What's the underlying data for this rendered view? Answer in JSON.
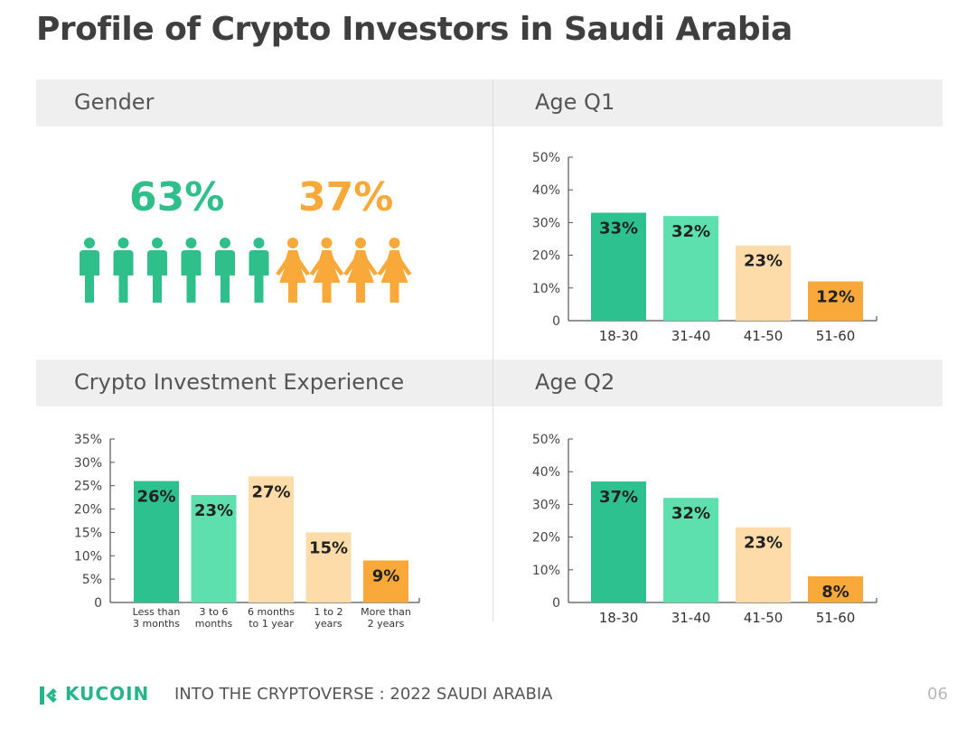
{
  "title": "Profile of Crypto Investors in Saudi Arabia",
  "sections": {
    "gender": "Gender",
    "age_q1": "Age Q1",
    "experience": "Crypto Investment Experience",
    "age_q2": "Age Q2"
  },
  "gender": {
    "male_pct": "63%",
    "female_pct": "37%",
    "male_icons": 6,
    "female_icons": 4,
    "male_color": "#2fbf8a",
    "female_color": "#f8a93a"
  },
  "chart_data": [
    {
      "id": "age_q1",
      "type": "bar",
      "title": "Age Q1",
      "categories": [
        "18-30",
        "31-40",
        "41-50",
        "51-60"
      ],
      "values": [
        33,
        32,
        23,
        12
      ],
      "labels": [
        "33%",
        "32%",
        "23%",
        "12%"
      ],
      "colors": [
        "#2cc18e",
        "#5ddfae",
        "#fddcaa",
        "#f9a83a"
      ],
      "ylim": [
        0,
        50
      ],
      "yticks": [
        "0",
        "10%",
        "20%",
        "30%",
        "40%",
        "50%"
      ],
      "ytick_values": [
        0,
        10,
        20,
        30,
        40,
        50
      ]
    },
    {
      "id": "experience",
      "type": "bar",
      "title": "Crypto Investment Experience",
      "categories": [
        [
          "Less than",
          "3 months"
        ],
        [
          "3 to 6",
          "months"
        ],
        [
          "6 months",
          "to 1 year"
        ],
        [
          "1 to 2",
          "years"
        ],
        [
          "More than",
          "2 years"
        ]
      ],
      "values": [
        26,
        23,
        27,
        15,
        9
      ],
      "labels": [
        "26%",
        "23%",
        "27%",
        "15%",
        "9%"
      ],
      "colors": [
        "#2cc18e",
        "#5ddfae",
        "#fddcaa",
        "#fddcaa",
        "#f9a83a"
      ],
      "ylim": [
        0,
        35
      ],
      "yticks": [
        "0",
        "5%",
        "10%",
        "15%",
        "20%",
        "25%",
        "30%",
        "35%"
      ],
      "ytick_values": [
        0,
        5,
        10,
        15,
        20,
        25,
        30,
        35
      ]
    },
    {
      "id": "age_q2",
      "type": "bar",
      "title": "Age Q2",
      "categories": [
        "18-30",
        "31-40",
        "41-50",
        "51-60"
      ],
      "values": [
        37,
        32,
        23,
        8
      ],
      "labels": [
        "37%",
        "32%",
        "23%",
        "8%"
      ],
      "colors": [
        "#2cc18e",
        "#5ddfae",
        "#fddcaa",
        "#f9a83a"
      ],
      "ylim": [
        0,
        50
      ],
      "yticks": [
        "0",
        "10%",
        "20%",
        "30%",
        "40%",
        "50%"
      ],
      "ytick_values": [
        0,
        10,
        20,
        30,
        40,
        50
      ]
    }
  ],
  "footer": {
    "brand": "KUCOIN",
    "tagline": "INTO THE CRYPTOVERSE : 2022 SAUDI ARABIA",
    "page_number": "06",
    "brand_color": "#26b58a"
  }
}
